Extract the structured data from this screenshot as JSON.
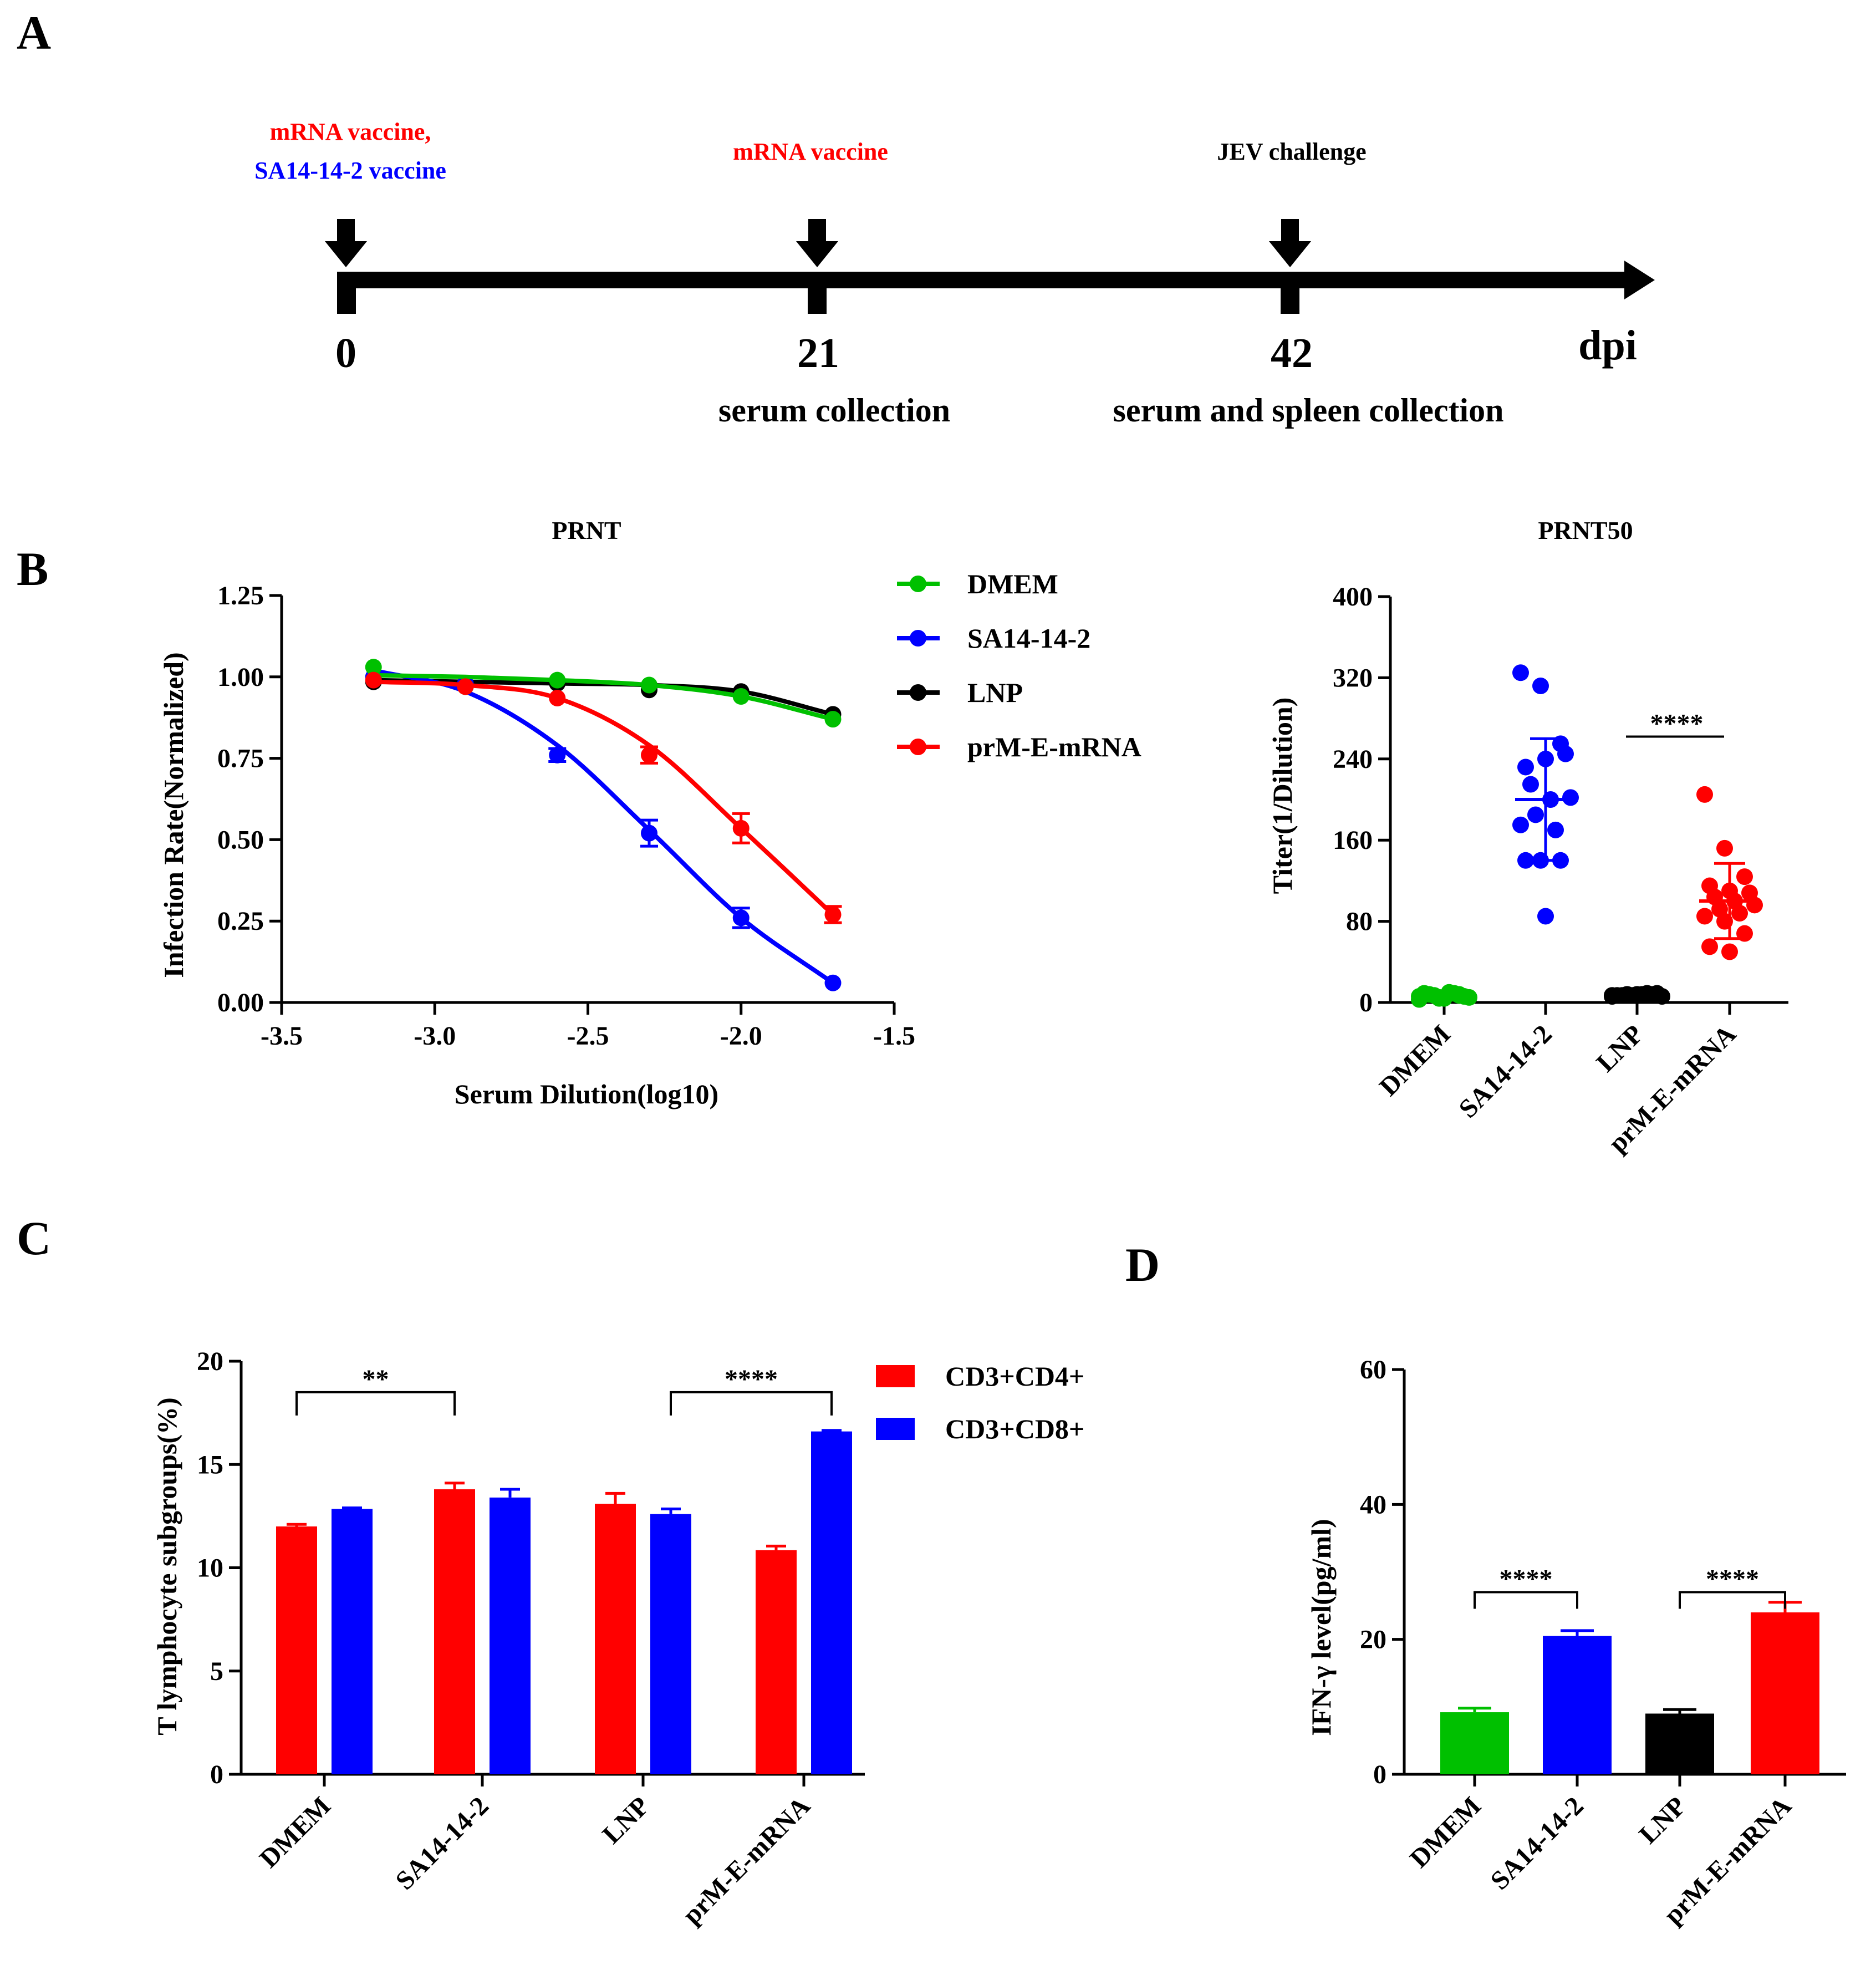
{
  "colors": {
    "red": "#ff0000",
    "blue": "#0000ff",
    "green": "#00c000",
    "black": "#000000"
  },
  "panel_labels": [
    "A",
    "B",
    "C",
    "D"
  ],
  "timeline": {
    "events": [
      {
        "day": "0",
        "labels": [
          {
            "text": "mRNA vaccine,",
            "color": "red"
          },
          {
            "text": "SA14-14-2 vaccine",
            "color": "blue"
          }
        ],
        "sub": ""
      },
      {
        "day": "21",
        "labels": [
          {
            "text": "mRNA vaccine",
            "color": "red"
          }
        ],
        "sub": "serum collection"
      },
      {
        "day": "42",
        "labels": [
          {
            "text": "JEV challenge",
            "color": "black"
          }
        ],
        "sub": "serum and spleen collection"
      }
    ],
    "unit": "dpi"
  },
  "chart_data": [
    {
      "id": "prnt",
      "type": "line",
      "title": "PRNT",
      "xlabel": "Serum Dilution(log10)",
      "ylabel": "Infection Rate(Normalized)",
      "xlim": [
        -3.5,
        -1.5
      ],
      "ylim": [
        0,
        1.25
      ],
      "xticks": [
        "-3.5",
        "-3.0",
        "-2.5",
        "-2.0",
        "-1.5"
      ],
      "yticks": [
        "0.00",
        "0.25",
        "0.50",
        "0.75",
        "1.00",
        "1.25"
      ],
      "legend_position": "top-right",
      "x": [
        -3.2,
        -2.9,
        -2.6,
        -2.3,
        -2.0,
        -1.7
      ],
      "series": [
        {
          "name": "DMEM",
          "color": "green",
          "values": [
            1.03,
            0.97,
            0.99,
            0.975,
            0.94,
            0.87
          ],
          "errors": [
            0,
            0,
            0,
            0,
            0,
            0
          ],
          "fit": [
            1.005,
            1.0,
            0.99,
            0.975,
            0.94,
            0.87
          ]
        },
        {
          "name": "SA14-14-2",
          "color": "blue",
          "values": [
            1.0,
            0.98,
            0.76,
            0.52,
            0.26,
            0.06
          ],
          "errors": [
            0,
            0,
            0.02,
            0.04,
            0.03,
            0
          ],
          "fit": [
            1.02,
            0.955,
            0.79,
            0.53,
            0.26,
            0.06
          ]
        },
        {
          "name": "LNP",
          "color": "black",
          "values": [
            0.985,
            0.98,
            0.98,
            0.96,
            0.955,
            0.885
          ],
          "errors": [
            0,
            0,
            0,
            0,
            0,
            0
          ],
          "fit": [
            0.99,
            0.985,
            0.98,
            0.975,
            0.955,
            0.885
          ]
        },
        {
          "name": "prM-E-mRNA",
          "color": "red",
          "values": [
            0.99,
            0.97,
            0.935,
            0.76,
            0.535,
            0.27
          ],
          "errors": [
            0,
            0,
            0,
            0.025,
            0.045,
            0.025
          ],
          "fit": [
            0.985,
            0.975,
            0.935,
            0.79,
            0.535,
            0.27
          ]
        }
      ]
    },
    {
      "id": "prnt50",
      "type": "scatter",
      "title": "PRNT50",
      "xlabel": "",
      "ylabel": "Titer(1/Dilution)",
      "ylim": [
        0,
        400
      ],
      "yticks": [
        "0",
        "80",
        "160",
        "240",
        "320",
        "400"
      ],
      "categories": [
        "DMEM",
        "SA14-14-2",
        "LNP",
        "prM-E-mRNA"
      ],
      "series": [
        {
          "name": "DMEM",
          "color": "green",
          "values": [
            3,
            5,
            7,
            9,
            4,
            6,
            8,
            10,
            5,
            7,
            9,
            6,
            4,
            8
          ],
          "mean": 6,
          "sd": 3
        },
        {
          "name": "SA14-14-2",
          "color": "blue",
          "values": [
            325,
            312,
            255,
            232,
            240,
            245,
            215,
            200,
            202,
            185,
            170,
            175,
            140,
            140,
            140,
            85
          ],
          "mean": 200,
          "sd": 60
        },
        {
          "name": "LNP",
          "color": "black",
          "values": [
            6,
            7,
            8,
            7,
            8,
            9,
            7,
            8,
            6,
            8,
            9,
            7
          ],
          "mean": 7,
          "sd": 1
        },
        {
          "name": "prM-E-mRNA",
          "color": "red",
          "values": [
            205,
            152,
            124,
            115,
            110,
            108,
            104,
            100,
            96,
            92,
            88,
            85,
            80,
            68,
            55,
            50
          ],
          "mean": 100,
          "sd": 37
        }
      ],
      "annotations": [
        {
          "text": "****",
          "between": [
            2,
            3
          ]
        }
      ]
    },
    {
      "id": "tcells",
      "type": "bar",
      "title": "",
      "xlabel": "",
      "ylabel": "T lymphocyte subgroups(%)",
      "ylim": [
        0,
        20
      ],
      "yticks": [
        "0",
        "5",
        "10",
        "15",
        "20"
      ],
      "categories": [
        "DMEM",
        "SA14-14-2",
        "LNP",
        "prM-E-mRNA"
      ],
      "legend_position": "top-right",
      "series": [
        {
          "name": "CD3+CD4+",
          "color": "red",
          "values": [
            12.0,
            13.8,
            13.1,
            10.85
          ],
          "errors": [
            0.1,
            0.3,
            0.5,
            0.2
          ]
        },
        {
          "name": "CD3+CD8+",
          "color": "blue",
          "values": [
            12.85,
            13.4,
            12.6,
            16.6
          ],
          "errors": [
            0.05,
            0.4,
            0.25,
            0.05
          ]
        }
      ],
      "annotations": [
        {
          "text": "**",
          "from": [
            0,
            0
          ],
          "to": [
            1,
            0
          ],
          "y": 18.5
        },
        {
          "text": "****",
          "from": [
            2,
            1
          ],
          "to": [
            3,
            1
          ],
          "y": 18.5
        }
      ]
    },
    {
      "id": "ifng",
      "type": "bar",
      "title": "",
      "xlabel": "",
      "ylabel": "IFN-γ level(pg/ml)",
      "ylim": [
        0,
        60
      ],
      "yticks": [
        "0",
        "20",
        "40",
        "60"
      ],
      "categories": [
        "DMEM",
        "SA14-14-2",
        "LNP",
        "prM-E-mRNA"
      ],
      "colors": [
        "green",
        "blue",
        "black",
        "red"
      ],
      "values": [
        9.2,
        20.5,
        9.0,
        24.0
      ],
      "errors": [
        0.6,
        0.8,
        0.6,
        1.5
      ],
      "annotations": [
        {
          "text": "****",
          "between": [
            0,
            1
          ],
          "y": 27
        },
        {
          "text": "****",
          "between": [
            2,
            3
          ],
          "y": 27
        }
      ]
    }
  ]
}
